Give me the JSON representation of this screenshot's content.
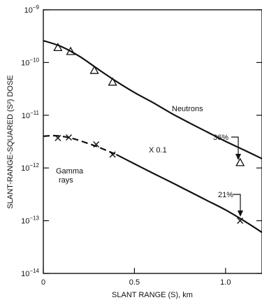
{
  "chart_data": {
    "type": "scatter",
    "title": "",
    "xlabel": "SLANT RANGE (S), km",
    "ylabel": "SLANT-RANGE-SQUARED (S²) DOSE",
    "xlim": [
      0,
      1.2
    ],
    "ylim_exponents": [
      -14,
      -9
    ],
    "y_scale": "log",
    "x_ticks": [
      {
        "value": 0,
        "label": "0"
      },
      {
        "value": 0.5,
        "label": "0.5"
      },
      {
        "value": 1.0,
        "label": "1.0"
      }
    ],
    "y_ticks": [
      {
        "value": 1e-09,
        "base": "10",
        "exp": "−9"
      },
      {
        "value": 1e-10,
        "base": "10",
        "exp": "−10"
      },
      {
        "value": 1e-11,
        "base": "10",
        "exp": "−11"
      },
      {
        "value": 1e-12,
        "base": "10",
        "exp": "−12"
      },
      {
        "value": 1e-13,
        "base": "10",
        "exp": "−13"
      },
      {
        "value": 1e-14,
        "base": "10",
        "exp": "−14"
      }
    ],
    "grid": false,
    "series": [
      {
        "name": "Neutrons",
        "style": "solid",
        "curve": [
          [
            0,
            2.6e-10
          ],
          [
            0.1,
            2e-10
          ],
          [
            0.2,
            1.3e-10
          ],
          [
            0.3,
            7.5e-11
          ],
          [
            0.4,
            4.4e-11
          ],
          [
            0.5,
            2.7e-11
          ],
          [
            0.6,
            1.75e-11
          ],
          [
            0.7,
            1.1e-11
          ],
          [
            0.8,
            7.2e-12
          ],
          [
            0.9,
            4.8e-12
          ],
          [
            1.0,
            3.2e-12
          ],
          [
            1.1,
            2.2e-12
          ],
          [
            1.2,
            1.5e-12
          ]
        ],
        "marker": "triangle",
        "points": [
          [
            0.08,
            1.9e-10
          ],
          [
            0.15,
            1.6e-10
          ],
          [
            0.28,
            7e-11
          ],
          [
            0.38,
            4.2e-11
          ],
          [
            1.08,
            1.25e-12
          ]
        ]
      },
      {
        "name": "Gamma rays",
        "style": "dashed-then-solid",
        "curve": [
          [
            0,
            4e-12
          ],
          [
            0.05,
            4.1e-12
          ],
          [
            0.1,
            4e-12
          ],
          [
            0.15,
            3.7e-12
          ],
          [
            0.2,
            3.3e-12
          ],
          [
            0.3,
            2.5e-12
          ],
          [
            0.4,
            1.8e-12
          ],
          [
            0.5,
            1.2e-12
          ],
          [
            0.6,
            8e-13
          ],
          [
            0.7,
            5.4e-13
          ],
          [
            0.8,
            3.6e-13
          ],
          [
            0.9,
            2.4e-13
          ],
          [
            1.0,
            1.6e-13
          ],
          [
            1.1,
            1e-13
          ],
          [
            1.2,
            6e-14
          ]
        ],
        "marker": "x",
        "points": [
          [
            0.08,
            3.7e-12
          ],
          [
            0.14,
            3.8e-12
          ],
          [
            0.29,
            2.8e-12
          ],
          [
            0.38,
            1.8e-12
          ],
          [
            1.08,
            1e-13
          ]
        ]
      }
    ],
    "annotations": {
      "neutrons_label": "Neutrons",
      "gamma_label_line1": "Gamma",
      "gamma_label_line2": "rays",
      "scale_factor": "X 0.1",
      "neutron_percent": "36%",
      "gamma_percent": "21%"
    }
  }
}
